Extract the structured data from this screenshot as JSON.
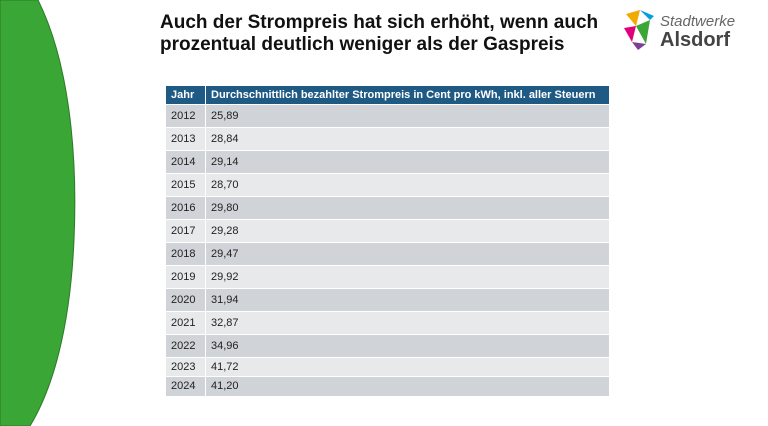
{
  "header": {
    "title_lines": [
      "Auch der Strompreis hat sich erhöht, wenn auch",
      "prozentual deutlich weniger als der Gaspreis"
    ]
  },
  "logo": {
    "line1": "Stadtwerke",
    "line2": "Alsdorf"
  },
  "table": {
    "columns": [
      "Jahr",
      "Durchschnittlich bezahlter Strompreis in Cent pro kWh, inkl. aller Steuern"
    ],
    "rows": [
      [
        "2012",
        "25,89"
      ],
      [
        "2013",
        "28,84"
      ],
      [
        "2014",
        "29,14"
      ],
      [
        "2015",
        "28,70"
      ],
      [
        "2016",
        "29,80"
      ],
      [
        "2017",
        "29,28"
      ],
      [
        "2018",
        "29,47"
      ],
      [
        "2019",
        "29,92"
      ],
      [
        "2020",
        "31,94"
      ],
      [
        "2021",
        "32,87"
      ],
      [
        "2022",
        "34,96"
      ],
      [
        "2023",
        "41,72"
      ],
      [
        "2024",
        "41,20"
      ]
    ]
  }
}
